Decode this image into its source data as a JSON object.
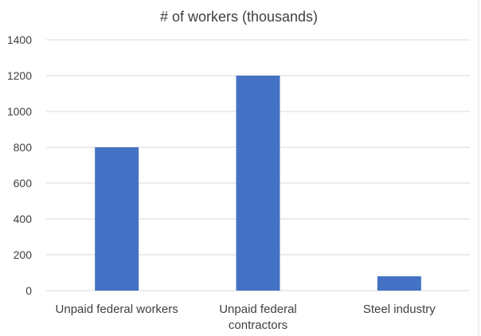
{
  "chart_data": {
    "type": "bar",
    "title": "# of workers (thousands)",
    "categories": [
      "Unpaid federal workers",
      "Unpaid federal contractors",
      "Steel industry"
    ],
    "category_label_lines": [
      [
        "Unpaid federal workers"
      ],
      [
        "Unpaid federal",
        "contractors"
      ],
      [
        "Steel industry"
      ]
    ],
    "values": [
      800,
      1200,
      80
    ],
    "ylim": [
      0,
      1400
    ],
    "yticks": [
      0,
      200,
      400,
      600,
      800,
      1000,
      1200,
      1400
    ],
    "xlabel": "",
    "ylabel": "",
    "grid": true,
    "legend": "none",
    "bar_color": "#4472c4"
  }
}
